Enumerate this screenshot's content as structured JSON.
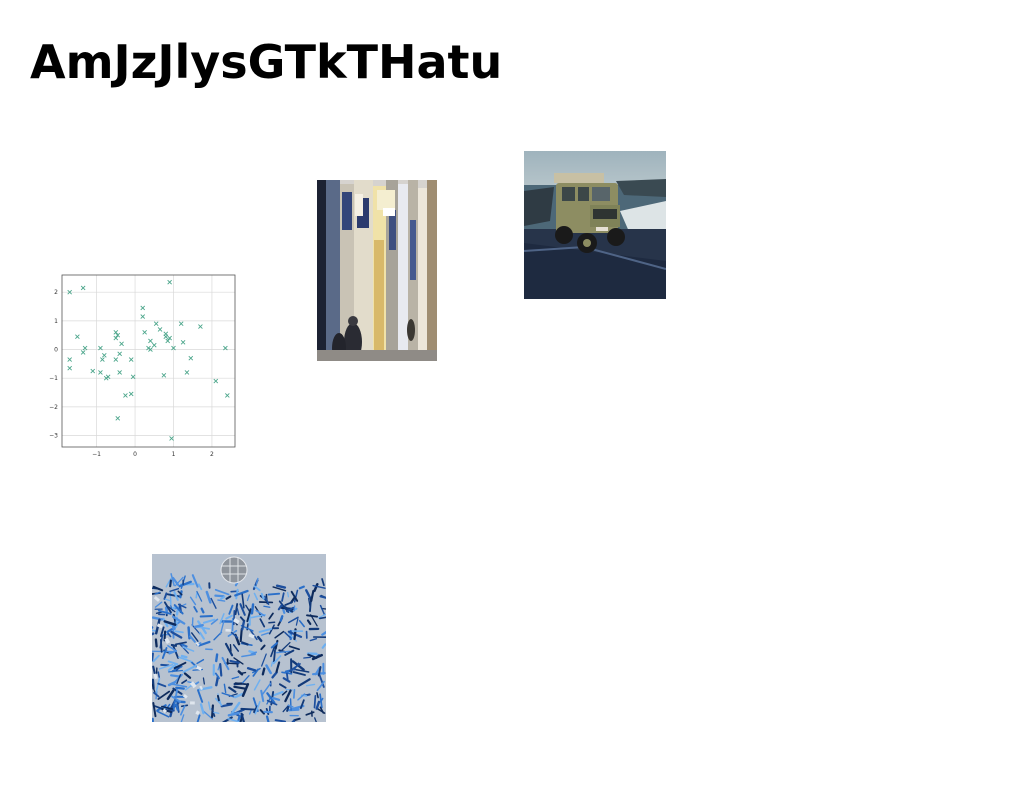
{
  "page": {
    "title": "AmJzJlysGTkTHatu"
  },
  "images": [
    {
      "name": "scatter-plot-image",
      "kind": "chart"
    },
    {
      "name": "street-photo",
      "kind": "photo"
    },
    {
      "name": "jeep-photo",
      "kind": "photo"
    },
    {
      "name": "tinsel-photo",
      "kind": "photo"
    }
  ],
  "chart_data": {
    "type": "scatter",
    "title": "",
    "xlabel": "",
    "ylabel": "",
    "xlim": [
      -1.9,
      2.6
    ],
    "ylim": [
      -3.4,
      2.6
    ],
    "x_ticks": [
      -1,
      0,
      1,
      2
    ],
    "y_ticks": [
      2,
      1,
      0,
      -1,
      -2,
      -3
    ],
    "x_tick_labels": [
      "−1",
      "0",
      "1",
      "2"
    ],
    "y_tick_labels": [
      "2",
      "1",
      "0",
      "−1",
      "−2",
      "−3"
    ],
    "grid": true,
    "marker": "x",
    "color": "#4aa58a",
    "series": [
      {
        "points": [
          [
            -1.7,
            2.0
          ],
          [
            -1.35,
            2.15
          ],
          [
            -1.5,
            0.45
          ],
          [
            -1.3,
            0.05
          ],
          [
            -1.35,
            -0.1
          ],
          [
            -1.7,
            -0.35
          ],
          [
            -1.7,
            -0.65
          ],
          [
            -1.1,
            -0.75
          ],
          [
            -0.9,
            0.05
          ],
          [
            -0.8,
            -0.2
          ],
          [
            -0.85,
            -0.35
          ],
          [
            -0.9,
            -0.8
          ],
          [
            -0.75,
            -1.0
          ],
          [
            -0.7,
            -0.95
          ],
          [
            -0.5,
            0.6
          ],
          [
            -0.5,
            0.4
          ],
          [
            -0.45,
            0.5
          ],
          [
            -0.35,
            0.2
          ],
          [
            -0.4,
            -0.15
          ],
          [
            -0.5,
            -0.35
          ],
          [
            -0.4,
            -0.8
          ],
          [
            -0.25,
            -1.6
          ],
          [
            -0.1,
            -0.35
          ],
          [
            -0.05,
            -0.95
          ],
          [
            -0.1,
            -1.55
          ],
          [
            -0.45,
            -2.4
          ],
          [
            0.2,
            1.45
          ],
          [
            0.2,
            1.15
          ],
          [
            0.25,
            0.6
          ],
          [
            0.4,
            0.3
          ],
          [
            0.35,
            0.05
          ],
          [
            0.4,
            0.0
          ],
          [
            0.5,
            0.15
          ],
          [
            0.55,
            0.9
          ],
          [
            0.65,
            0.7
          ],
          [
            0.8,
            0.55
          ],
          [
            0.8,
            0.45
          ],
          [
            0.85,
            0.3
          ],
          [
            0.9,
            0.4
          ],
          [
            0.9,
            2.35
          ],
          [
            1.0,
            0.05
          ],
          [
            1.2,
            0.9
          ],
          [
            1.25,
            0.25
          ],
          [
            1.35,
            -0.8
          ],
          [
            1.45,
            -0.3
          ],
          [
            1.7,
            0.8
          ],
          [
            2.1,
            -1.1
          ],
          [
            2.35,
            0.05
          ],
          [
            2.4,
            -1.6
          ],
          [
            0.75,
            -0.9
          ],
          [
            0.95,
            -3.1
          ]
        ]
      }
    ]
  },
  "colors": {
    "background": "#ffffff",
    "title_text": "#000000",
    "marker": "#4aa58a",
    "grid": "#d9d9d9",
    "axes": "#555555"
  }
}
